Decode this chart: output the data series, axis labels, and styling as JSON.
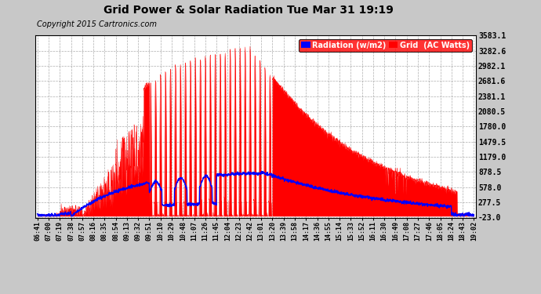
{
  "title": "Grid Power & Solar Radiation Tue Mar 31 19:19",
  "copyright": "Copyright 2015 Cartronics.com",
  "background_color": "#c8c8c8",
  "plot_bg_color": "#ffffff",
  "grid_color": "#999999",
  "yticks": [
    -23.0,
    277.5,
    578.0,
    878.5,
    1179.0,
    1479.5,
    1780.0,
    2080.5,
    2381.1,
    2681.6,
    2982.1,
    3282.6,
    3583.1
  ],
  "ymin": -23.0,
  "ymax": 3583.1,
  "legend_radiation_label": "Radiation (w/m2)",
  "legend_grid_label": "Grid  (AC Watts)",
  "legend_radiation_color": "#0000ff",
  "legend_grid_color": "#ff0000",
  "red_fill_color": "#ff0000",
  "blue_line_color": "#0000ff",
  "xtick_labels": [
    "06:41",
    "07:00",
    "07:19",
    "07:38",
    "07:57",
    "08:16",
    "08:35",
    "08:54",
    "09:13",
    "09:32",
    "09:51",
    "10:10",
    "10:29",
    "10:48",
    "11:07",
    "11:26",
    "11:45",
    "12:04",
    "12:23",
    "12:42",
    "13:01",
    "13:20",
    "13:39",
    "13:58",
    "14:17",
    "14:36",
    "14:55",
    "15:14",
    "15:33",
    "15:52",
    "16:11",
    "16:30",
    "16:49",
    "17:08",
    "17:27",
    "17:46",
    "18:05",
    "18:24",
    "18:43",
    "19:02"
  ]
}
